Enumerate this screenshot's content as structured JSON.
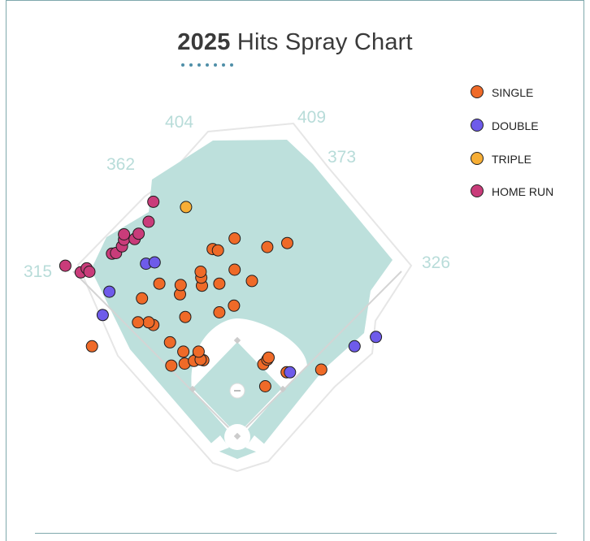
{
  "colors": {
    "single": "#ef6a28",
    "double": "#6e5bea",
    "triple": "#f7ae35",
    "home_run": "#c93c7a",
    "grass": "#bde0dc",
    "distance": "#b8dcd9",
    "accent": "#4f8fa8"
  },
  "chart_data": {
    "type": "scatter",
    "title_year": "2025",
    "title_rest": "Hits Spray Chart",
    "legend_position": "top-right",
    "fence_distances": [
      {
        "label": "315",
        "value": 315
      },
      {
        "label": "362",
        "value": 362
      },
      {
        "label": "404",
        "value": 404
      },
      {
        "label": "409",
        "value": 409
      },
      {
        "label": "373",
        "value": 373
      },
      {
        "label": "326",
        "value": 326
      }
    ],
    "series": [
      {
        "name": "SINGLE",
        "key": "single",
        "points": [
          [
            -79,
            109
          ],
          [
            -59,
            119
          ],
          [
            -65,
            113
          ],
          [
            -51,
            114
          ],
          [
            -55,
            115
          ],
          [
            -99,
            106
          ],
          [
            -58,
            127
          ],
          [
            -81,
            127
          ],
          [
            -101,
            141
          ],
          [
            -126,
            167
          ],
          [
            -78,
            179
          ],
          [
            -133,
            171
          ],
          [
            -149,
            171
          ],
          [
            -143,
            207
          ],
          [
            -218,
            135
          ],
          [
            -86,
            213
          ],
          [
            -53,
            226
          ],
          [
            -27,
            186
          ],
          [
            -5,
            196
          ],
          [
            -54,
            238
          ],
          [
            -55,
            247
          ],
          [
            -85,
            227
          ],
          [
            -117,
            229
          ],
          [
            -27,
            229
          ],
          [
            22,
            233
          ],
          [
            -4,
            250
          ],
          [
            -37,
            281
          ],
          [
            -29,
            279
          ],
          [
            45,
            284
          ],
          [
            -4,
            297
          ],
          [
            75,
            290
          ],
          [
            39,
            108
          ],
          [
            45,
            115
          ],
          [
            47,
            118
          ],
          [
            42,
            75
          ],
          [
            74,
            96
          ],
          [
            126,
            100
          ]
        ]
      },
      {
        "name": "DOUBLE",
        "key": "double",
        "points": [
          [
            -202,
            182
          ],
          [
            -192,
            217
          ],
          [
            -137,
            259
          ],
          [
            -124,
            261
          ],
          [
            79,
            96
          ],
          [
            176,
            135
          ],
          [
            208,
            149
          ]
        ]
      },
      {
        "name": "TRIPLE",
        "key": "triple",
        "points": [
          [
            -77,
            344
          ]
        ]
      },
      {
        "name": "HOME RUN",
        "key": "home_run",
        "points": [
          [
            -258,
            256
          ],
          [
            -235,
            246
          ],
          [
            -226,
            252
          ],
          [
            -222,
            247
          ],
          [
            -188,
            274
          ],
          [
            -182,
            275
          ],
          [
            -173,
            285
          ],
          [
            -170,
            295
          ],
          [
            -170,
            303
          ],
          [
            -154,
            296
          ],
          [
            -148,
            304
          ],
          [
            -133,
            322
          ],
          [
            -126,
            352
          ]
        ]
      }
    ]
  }
}
